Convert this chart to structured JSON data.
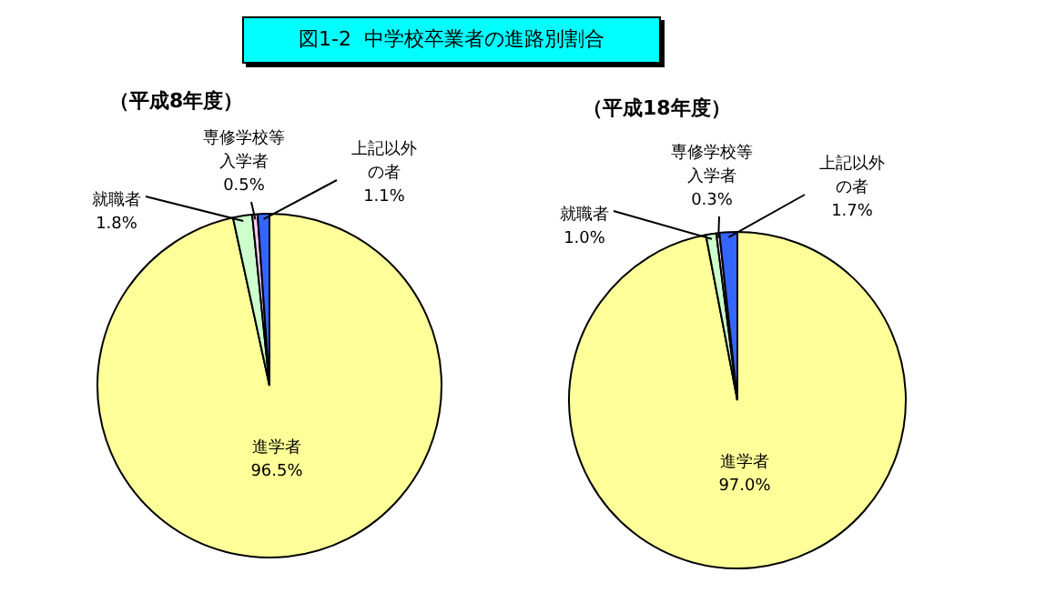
{
  "chart_data": [
    {
      "type": "pie",
      "title": "図1-2  中学校卒業者の進路別割合",
      "subtitle": "（平成8年度）",
      "categories": [
        "進学者",
        "就職者",
        "専修学校等入学者",
        "上記以外の者"
      ],
      "values": [
        96.5,
        1.8,
        0.5,
        1.1
      ],
      "colors": [
        "#ffff99",
        "#ccffcc",
        "#ffccff",
        "#3366ff"
      ],
      "value_labels": [
        "96.5%",
        "1.8%",
        "0.5%",
        "1.1%"
      ],
      "legend": false
    },
    {
      "type": "pie",
      "subtitle": "（平成18年度）",
      "categories": [
        "進学者",
        "就職者",
        "専修学校等入学者",
        "上記以外の者"
      ],
      "values": [
        97.0,
        1.0,
        0.3,
        1.7
      ],
      "colors": [
        "#ffff99",
        "#ccffcc",
        "#ffccff",
        "#3366ff"
      ],
      "value_labels": [
        "97.0%",
        "1.0%",
        "0.3%",
        "1.7%"
      ],
      "legend": false
    }
  ]
}
